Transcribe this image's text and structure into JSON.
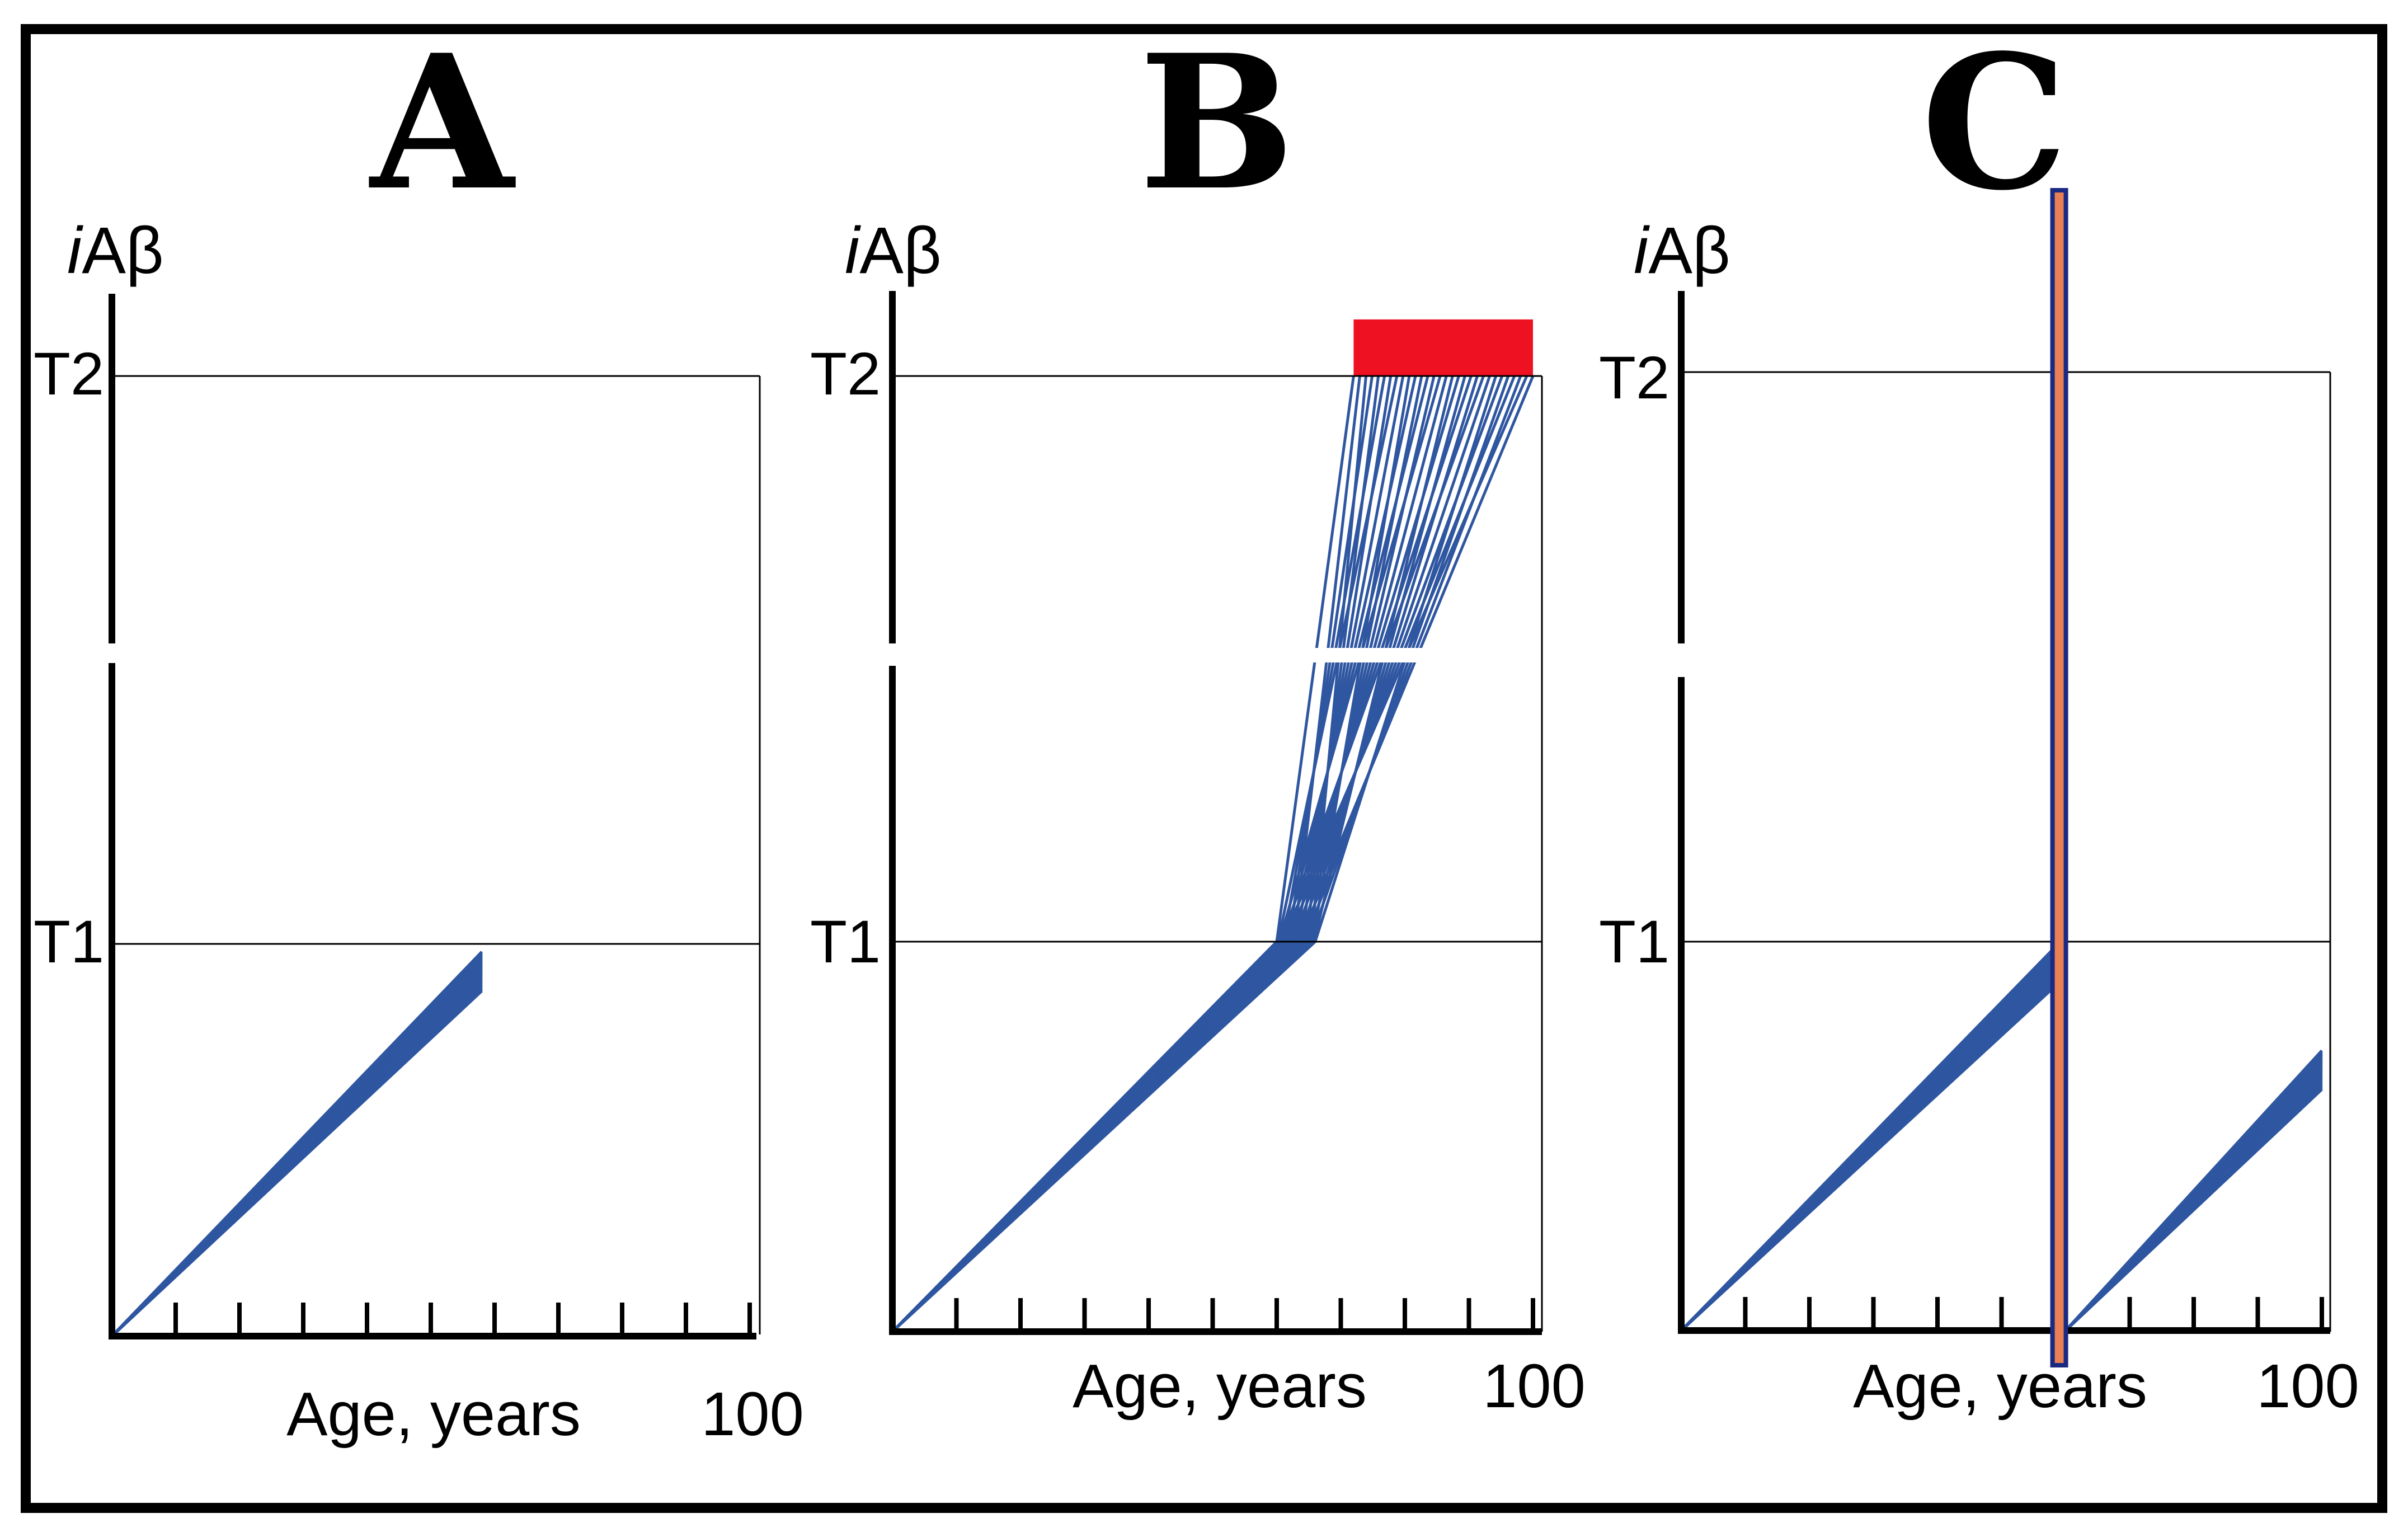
{
  "chart_data": [
    {
      "type": "line",
      "panel": "A",
      "title": "A",
      "ylabel_italic": "i",
      "ylabel": "Aβ",
      "xlabel": "Age, years",
      "x_end_label": "100",
      "xlim": [
        0,
        100
      ],
      "y_levels": [
        {
          "name": "T1",
          "value": 1.0
        },
        {
          "name": "T2",
          "value": 2.0
        }
      ],
      "ylim": [
        0,
        2.0
      ],
      "x_ticks": [
        10,
        20,
        30,
        40,
        50,
        60,
        70,
        80,
        90,
        100
      ],
      "series": [
        {
          "name": "trajectories",
          "x": [
            0,
            58
          ],
          "y_start": 0,
          "y_end_range": [
            0.88,
            0.98
          ]
        }
      ],
      "axis_break_at": 1.5
    },
    {
      "type": "line",
      "panel": "B",
      "title": "B",
      "ylabel_italic": "i",
      "ylabel": "Aβ",
      "xlabel": "Age, years",
      "x_end_label": "100",
      "xlim": [
        0,
        100
      ],
      "y_levels": [
        {
          "name": "T1",
          "value": 1.0
        },
        {
          "name": "T2",
          "value": 2.0
        }
      ],
      "ylim": [
        0,
        2.0
      ],
      "x_ticks": [
        10,
        20,
        30,
        40,
        50,
        60,
        70,
        80,
        90,
        100
      ],
      "series": [
        {
          "name": "phase-1",
          "x_start": 0,
          "x_end_range": [
            60,
            66
          ],
          "y_start": 0,
          "y_end": 1.0
        },
        {
          "name": "phase-2",
          "x_start_range": [
            60,
            66
          ],
          "x_end_range": [
            72,
            100
          ],
          "y_start": 1.0,
          "y_end": 2.0
        }
      ],
      "highlight": {
        "name": "T2-crossing",
        "x_range": [
          72,
          100
        ],
        "y_range": [
          2.0,
          2.1
        ],
        "color": "#ee1122"
      },
      "axis_break_at": 1.5
    },
    {
      "type": "line",
      "panel": "C",
      "title": "C",
      "ylabel_italic": "i",
      "ylabel": "Aβ",
      "xlabel": "Age, years",
      "x_end_label": "100",
      "xlim": [
        0,
        100
      ],
      "y_levels": [
        {
          "name": "T1",
          "value": 1.0
        },
        {
          "name": "T2",
          "value": 2.0
        }
      ],
      "ylim": [
        0,
        2.0
      ],
      "x_ticks": [
        10,
        20,
        30,
        40,
        50,
        60,
        70,
        80,
        90,
        100
      ],
      "series": [
        {
          "name": "pre-intervention",
          "x": [
            0,
            58
          ],
          "y_start": 0,
          "y_end_range": [
            0.88,
            0.98
          ]
        },
        {
          "name": "post-intervention",
          "x": [
            60,
            100
          ],
          "y_start": 0,
          "y_end_range": [
            0.62,
            0.72
          ]
        }
      ],
      "intervention": {
        "name": "transient-treatment",
        "x": 59,
        "fill": "#e97f53",
        "stroke": "#1a2a80"
      },
      "axis_break_at": 1.5
    }
  ],
  "colors": {
    "trajectory": "#2f56a0",
    "axis": "#000000",
    "border": "#000000"
  }
}
